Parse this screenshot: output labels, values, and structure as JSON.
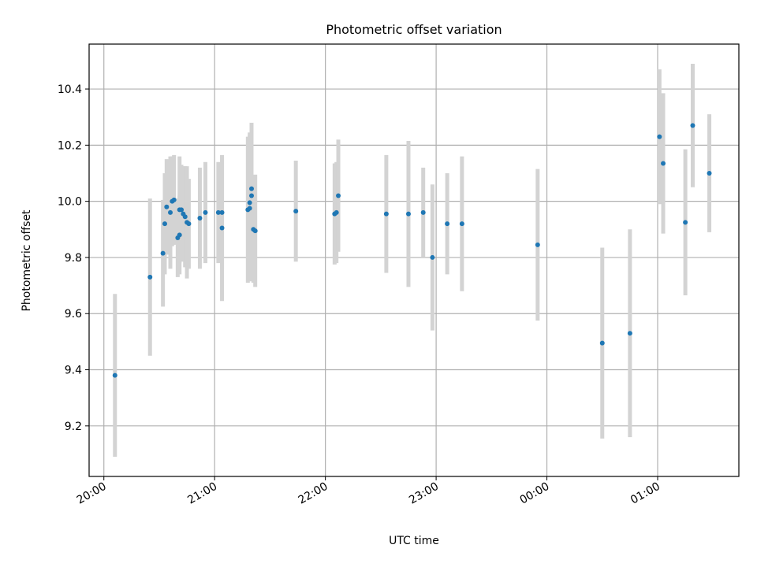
{
  "chart_data": {
    "type": "scatter",
    "title": "Photometric offset variation",
    "xlabel": "UTC time",
    "ylabel": "Photometric offset",
    "grid": true,
    "x_ticks": [
      "20:00",
      "21:00",
      "22:00",
      "23:00",
      "00:00",
      "01:00"
    ],
    "y_ticks": [
      "9.2",
      "9.4",
      "9.6",
      "9.8",
      "10.0",
      "10.2",
      "10.4"
    ],
    "xlim": [
      "19:52",
      "01:44"
    ],
    "ylim": [
      9.02,
      10.56
    ],
    "colors": {
      "point": "#1f77b4",
      "errorbar": "#d3d3d3",
      "grid": "#b0b0b0"
    },
    "series": [
      {
        "points": [
          {
            "x": "20:06",
            "y": 9.38,
            "err": 0.29
          },
          {
            "x": "20:25",
            "y": 9.73,
            "err": 0.28
          },
          {
            "x": "20:32",
            "y": 9.815,
            "err": 0.19
          },
          {
            "x": "20:33",
            "y": 9.92,
            "err": 0.18
          },
          {
            "x": "20:34",
            "y": 9.98,
            "err": 0.17
          },
          {
            "x": "20:36",
            "y": 9.96,
            "err": 0.2
          },
          {
            "x": "20:37",
            "y": 10.0,
            "err": 0.16
          },
          {
            "x": "20:38",
            "y": 10.005,
            "err": 0.16
          },
          {
            "x": "20:40",
            "y": 9.87,
            "err": 0.14
          },
          {
            "x": "20:41",
            "y": 9.88,
            "err": 0.14
          },
          {
            "x": "20:41",
            "y": 9.97,
            "err": 0.19
          },
          {
            "x": "20:42",
            "y": 9.97,
            "err": 0.16
          },
          {
            "x": "20:43",
            "y": 9.955,
            "err": 0.17
          },
          {
            "x": "20:44",
            "y": 9.945,
            "err": 0.18
          },
          {
            "x": "20:45",
            "y": 9.925,
            "err": 0.2
          },
          {
            "x": "20:46",
            "y": 9.92,
            "err": 0.16
          },
          {
            "x": "20:52",
            "y": 9.94,
            "err": 0.18
          },
          {
            "x": "20:55",
            "y": 9.96,
            "err": 0.18
          },
          {
            "x": "21:02",
            "y": 9.96,
            "err": 0.18
          },
          {
            "x": "21:04",
            "y": 9.96,
            "err": 0.2
          },
          {
            "x": "21:04",
            "y": 9.905,
            "err": 0.26
          },
          {
            "x": "21:18",
            "y": 9.97,
            "err": 0.26
          },
          {
            "x": "21:19",
            "y": 9.975,
            "err": 0.26
          },
          {
            "x": "21:19",
            "y": 9.995,
            "err": 0.25
          },
          {
            "x": "21:20",
            "y": 10.045,
            "err": 0.2
          },
          {
            "x": "21:20",
            "y": 10.02,
            "err": 0.26
          },
          {
            "x": "21:21",
            "y": 9.9,
            "err": 0.19
          },
          {
            "x": "21:22",
            "y": 9.895,
            "err": 0.2
          },
          {
            "x": "21:44",
            "y": 9.965,
            "err": 0.18
          },
          {
            "x": "22:05",
            "y": 9.955,
            "err": 0.18
          },
          {
            "x": "22:06",
            "y": 9.96,
            "err": 0.18
          },
          {
            "x": "22:07",
            "y": 10.02,
            "err": 0.2
          },
          {
            "x": "22:33",
            "y": 9.955,
            "err": 0.21
          },
          {
            "x": "22:45",
            "y": 9.955,
            "err": 0.26
          },
          {
            "x": "22:53",
            "y": 9.96,
            "err": 0.16
          },
          {
            "x": "22:58",
            "y": 9.8,
            "err": 0.26
          },
          {
            "x": "23:06",
            "y": 9.92,
            "err": 0.18
          },
          {
            "x": "23:14",
            "y": 9.92,
            "err": 0.24
          },
          {
            "x": "23:55",
            "y": 9.845,
            "err": 0.27
          },
          {
            "x": "00:30",
            "y": 9.495,
            "err": 0.34
          },
          {
            "x": "00:45",
            "y": 9.53,
            "err": 0.37
          },
          {
            "x": "01:01",
            "y": 10.23,
            "err": 0.24
          },
          {
            "x": "01:03",
            "y": 10.135,
            "err": 0.25
          },
          {
            "x": "01:15",
            "y": 9.925,
            "err": 0.26
          },
          {
            "x": "01:19",
            "y": 10.27,
            "err": 0.22
          },
          {
            "x": "01:28",
            "y": 10.1,
            "err": 0.21
          }
        ]
      }
    ]
  }
}
